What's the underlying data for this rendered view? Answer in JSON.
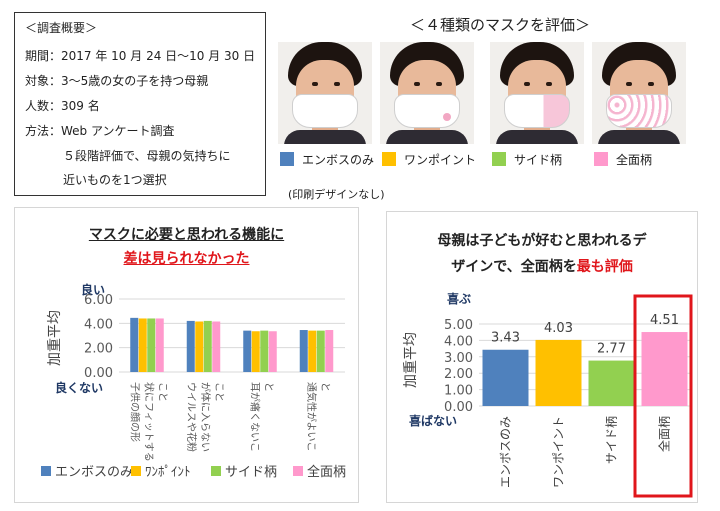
{
  "survey": {
    "heading": "＜調査概要＞",
    "period": "期間：2017 年 10 月 24 日～10 月 30 日",
    "target": "対象：3～5歳の女の子を持つ母親",
    "count": "人数：309 名",
    "method": "方法：Web アンケート調査",
    "method_detail_1": "５段階評価で、母親の気持ちに",
    "method_detail_2": "近いものを1つ選択"
  },
  "masks": {
    "title": "＜４種類のマスクを評価＞",
    "items": [
      {
        "label": "エンボスのみ",
        "color": "#4f81bd"
      },
      {
        "label": "ワンポイント",
        "color": "#ffc000"
      },
      {
        "label": "サイド柄",
        "color": "#92d050"
      },
      {
        "label": "全面柄",
        "color": "#ff99cc"
      }
    ],
    "note": "(印刷デザインなし)"
  },
  "left_panel": {
    "title_line1": "マスクに必要と思われる機能に",
    "title_line2": "差は見られなかった",
    "good_label": "良い",
    "bad_label": "良くない",
    "legend": [
      "エンボスのみ",
      "ﾜﾝﾎﾟｲﾝﾄ",
      "サイド柄",
      "全面柄"
    ]
  },
  "right_panel": {
    "title_line1": "母親は子どもが好むと思われるデ",
    "title_line2_a": "ザインで、全面柄を",
    "title_line2_b": "最も評価",
    "happy_label": "喜ぶ",
    "unhappy_label": "喜ばない"
  },
  "chart_data": [
    {
      "type": "bar",
      "ylabel": "加重平均",
      "ylim": [
        0,
        6
      ],
      "yticks": [
        "0.00",
        "2.00",
        "4.00",
        "6.00"
      ],
      "categories": [
        "子供の顔の形状にフィットすること",
        "ウイルスや花粉が体に入らないこと",
        "耳が痛くないこと",
        "通気性がよいこと"
      ],
      "category_lines": [
        [
          "子供の顔の形",
          "状にフィットする",
          "こと"
        ],
        [
          "ウイルスや花粉",
          "が体に入らない",
          "こと"
        ],
        [
          "耳が痛くないこ",
          "と"
        ],
        [
          "通気性がよいこ",
          "と"
        ]
      ],
      "series": [
        {
          "name": "エンボスのみ",
          "color": "#4f81bd",
          "values": [
            4.45,
            4.2,
            3.4,
            3.45
          ]
        },
        {
          "name": "ﾜﾝﾎﾟｲﾝﾄ",
          "color": "#ffc000",
          "values": [
            4.4,
            4.15,
            3.35,
            3.4
          ]
        },
        {
          "name": "サイド柄",
          "color": "#92d050",
          "values": [
            4.4,
            4.2,
            3.4,
            3.4
          ]
        },
        {
          "name": "全面柄",
          "color": "#ff99cc",
          "values": [
            4.4,
            4.15,
            3.35,
            3.45
          ]
        }
      ],
      "grid": true,
      "legend_position": "bottom"
    },
    {
      "type": "bar",
      "ylabel": "加重平均",
      "ylim": [
        0,
        5
      ],
      "yticks": [
        "0.00",
        "1.00",
        "2.00",
        "3.00",
        "4.00",
        "5.00"
      ],
      "categories": [
        "エンボスのみ",
        "ワンポイント",
        "サイド柄",
        "全面柄"
      ],
      "values": [
        3.43,
        4.03,
        2.77,
        4.51
      ],
      "value_labels": [
        "3.43",
        "4.03",
        "2.77",
        "4.51"
      ],
      "colors": [
        "#4f81bd",
        "#ffc000",
        "#92d050",
        "#ff99cc"
      ],
      "highlight": "全面柄",
      "grid": true
    }
  ]
}
